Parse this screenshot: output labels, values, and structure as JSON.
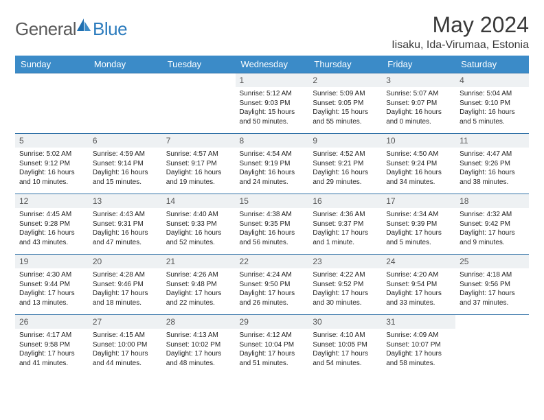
{
  "brand": {
    "part1": "General",
    "part2": "Blue"
  },
  "title": "May 2024",
  "location": "Iisaku, Ida-Virumaa, Estonia",
  "colors": {
    "header_bg": "#3b8bc8",
    "header_text": "#ffffff",
    "row_divider": "#2e6fa6",
    "daynum_bg": "#eef1f3",
    "brand_gray": "#5a5a5a",
    "brand_blue": "#2b7bbd"
  },
  "typography": {
    "title_fontsize": 32,
    "location_fontsize": 16,
    "dayheader_fontsize": 13,
    "daynum_fontsize": 12,
    "cell_fontsize": 10
  },
  "day_headers": [
    "Sunday",
    "Monday",
    "Tuesday",
    "Wednesday",
    "Thursday",
    "Friday",
    "Saturday"
  ],
  "weeks": [
    [
      null,
      null,
      null,
      {
        "n": "1",
        "sr": "5:12 AM",
        "ss": "9:03 PM",
        "dl": "15 hours and 50 minutes."
      },
      {
        "n": "2",
        "sr": "5:09 AM",
        "ss": "9:05 PM",
        "dl": "15 hours and 55 minutes."
      },
      {
        "n": "3",
        "sr": "5:07 AM",
        "ss": "9:07 PM",
        "dl": "16 hours and 0 minutes."
      },
      {
        "n": "4",
        "sr": "5:04 AM",
        "ss": "9:10 PM",
        "dl": "16 hours and 5 minutes."
      }
    ],
    [
      {
        "n": "5",
        "sr": "5:02 AM",
        "ss": "9:12 PM",
        "dl": "16 hours and 10 minutes."
      },
      {
        "n": "6",
        "sr": "4:59 AM",
        "ss": "9:14 PM",
        "dl": "16 hours and 15 minutes."
      },
      {
        "n": "7",
        "sr": "4:57 AM",
        "ss": "9:17 PM",
        "dl": "16 hours and 19 minutes."
      },
      {
        "n": "8",
        "sr": "4:54 AM",
        "ss": "9:19 PM",
        "dl": "16 hours and 24 minutes."
      },
      {
        "n": "9",
        "sr": "4:52 AM",
        "ss": "9:21 PM",
        "dl": "16 hours and 29 minutes."
      },
      {
        "n": "10",
        "sr": "4:50 AM",
        "ss": "9:24 PM",
        "dl": "16 hours and 34 minutes."
      },
      {
        "n": "11",
        "sr": "4:47 AM",
        "ss": "9:26 PM",
        "dl": "16 hours and 38 minutes."
      }
    ],
    [
      {
        "n": "12",
        "sr": "4:45 AM",
        "ss": "9:28 PM",
        "dl": "16 hours and 43 minutes."
      },
      {
        "n": "13",
        "sr": "4:43 AM",
        "ss": "9:31 PM",
        "dl": "16 hours and 47 minutes."
      },
      {
        "n": "14",
        "sr": "4:40 AM",
        "ss": "9:33 PM",
        "dl": "16 hours and 52 minutes."
      },
      {
        "n": "15",
        "sr": "4:38 AM",
        "ss": "9:35 PM",
        "dl": "16 hours and 56 minutes."
      },
      {
        "n": "16",
        "sr": "4:36 AM",
        "ss": "9:37 PM",
        "dl": "17 hours and 1 minute."
      },
      {
        "n": "17",
        "sr": "4:34 AM",
        "ss": "9:39 PM",
        "dl": "17 hours and 5 minutes."
      },
      {
        "n": "18",
        "sr": "4:32 AM",
        "ss": "9:42 PM",
        "dl": "17 hours and 9 minutes."
      }
    ],
    [
      {
        "n": "19",
        "sr": "4:30 AM",
        "ss": "9:44 PM",
        "dl": "17 hours and 13 minutes."
      },
      {
        "n": "20",
        "sr": "4:28 AM",
        "ss": "9:46 PM",
        "dl": "17 hours and 18 minutes."
      },
      {
        "n": "21",
        "sr": "4:26 AM",
        "ss": "9:48 PM",
        "dl": "17 hours and 22 minutes."
      },
      {
        "n": "22",
        "sr": "4:24 AM",
        "ss": "9:50 PM",
        "dl": "17 hours and 26 minutes."
      },
      {
        "n": "23",
        "sr": "4:22 AM",
        "ss": "9:52 PM",
        "dl": "17 hours and 30 minutes."
      },
      {
        "n": "24",
        "sr": "4:20 AM",
        "ss": "9:54 PM",
        "dl": "17 hours and 33 minutes."
      },
      {
        "n": "25",
        "sr": "4:18 AM",
        "ss": "9:56 PM",
        "dl": "17 hours and 37 minutes."
      }
    ],
    [
      {
        "n": "26",
        "sr": "4:17 AM",
        "ss": "9:58 PM",
        "dl": "17 hours and 41 minutes."
      },
      {
        "n": "27",
        "sr": "4:15 AM",
        "ss": "10:00 PM",
        "dl": "17 hours and 44 minutes."
      },
      {
        "n": "28",
        "sr": "4:13 AM",
        "ss": "10:02 PM",
        "dl": "17 hours and 48 minutes."
      },
      {
        "n": "29",
        "sr": "4:12 AM",
        "ss": "10:04 PM",
        "dl": "17 hours and 51 minutes."
      },
      {
        "n": "30",
        "sr": "4:10 AM",
        "ss": "10:05 PM",
        "dl": "17 hours and 54 minutes."
      },
      {
        "n": "31",
        "sr": "4:09 AM",
        "ss": "10:07 PM",
        "dl": "17 hours and 58 minutes."
      },
      null
    ]
  ],
  "labels": {
    "sunrise": "Sunrise:",
    "sunset": "Sunset:",
    "daylight": "Daylight:"
  }
}
